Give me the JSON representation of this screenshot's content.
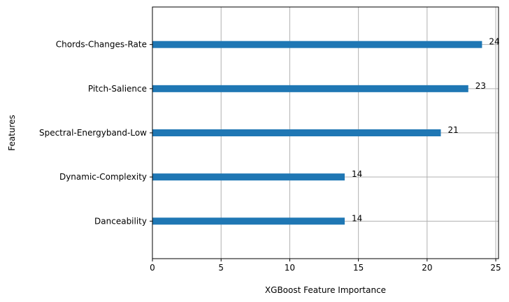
{
  "chart_data": {
    "type": "bar",
    "orientation": "horizontal",
    "categories": [
      "Danceability",
      "Dynamic-Complexity",
      "Spectral-Energyband-Low",
      "Pitch-Salience",
      "Chords-Changes-Rate"
    ],
    "values": [
      14,
      14,
      21,
      23,
      24
    ],
    "data_labels": [
      "14",
      "14",
      "21",
      "23",
      "24"
    ],
    "title": "",
    "xlabel": "XGBoost Feature Importance",
    "ylabel": "Features",
    "xlim": [
      0,
      25.2
    ],
    "x_ticks": [
      0,
      5,
      10,
      15,
      20,
      25
    ],
    "x_tick_labels": [
      "0",
      "5",
      "10",
      "15",
      "20",
      "25"
    ],
    "grid": true,
    "bar_color": "#1f77b4"
  }
}
